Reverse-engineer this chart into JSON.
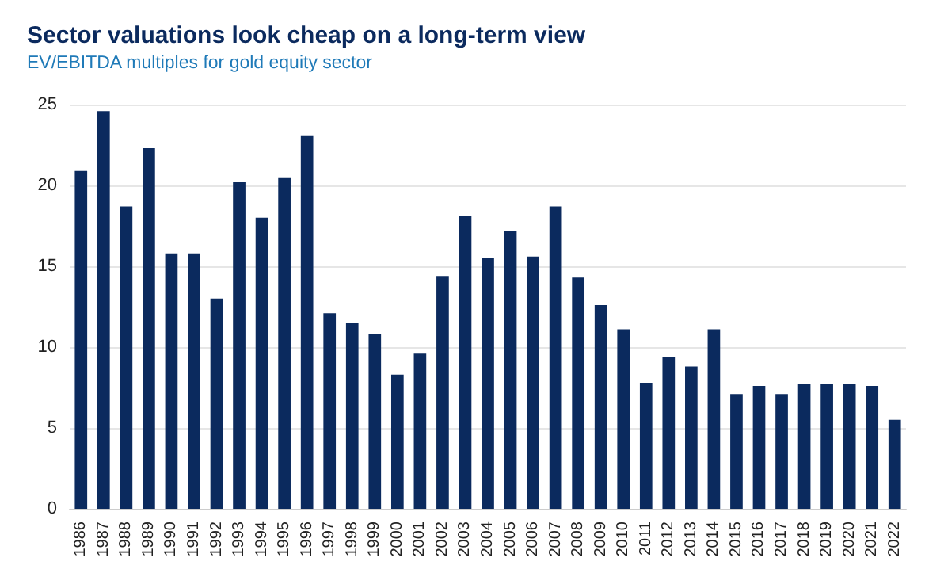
{
  "chart_data": {
    "type": "bar",
    "title": "Sector valuations look cheap on a long-term view",
    "subtitle": "EV/EBITDA multiples for gold equity sector",
    "categories": [
      "1986",
      "1987",
      "1988",
      "1989",
      "1990",
      "1991",
      "1992",
      "1993",
      "1994",
      "1995",
      "1996",
      "1997",
      "1998",
      "1999",
      "2000",
      "2001",
      "2002",
      "2003",
      "2004",
      "2005",
      "2006",
      "2007",
      "2008",
      "2009",
      "2010",
      "2011",
      "2012",
      "2013",
      "2014",
      "2015",
      "2016",
      "2017",
      "2018",
      "2019",
      "2020",
      "2021",
      "2022"
    ],
    "values": [
      20.9,
      24.6,
      18.7,
      22.3,
      15.8,
      15.8,
      13.0,
      20.2,
      18.0,
      20.5,
      23.1,
      12.1,
      11.5,
      10.8,
      8.3,
      9.6,
      14.4,
      18.1,
      15.5,
      17.2,
      15.6,
      18.7,
      14.3,
      12.6,
      11.1,
      7.8,
      9.4,
      8.8,
      11.1,
      7.1,
      7.6,
      7.1,
      7.7,
      7.7,
      7.7,
      7.6,
      5.5
    ],
    "color": "#0b2a5e",
    "ylim": [
      0,
      25
    ],
    "yticks": [
      0,
      5,
      10,
      15,
      20,
      25
    ],
    "grid": "y"
  }
}
